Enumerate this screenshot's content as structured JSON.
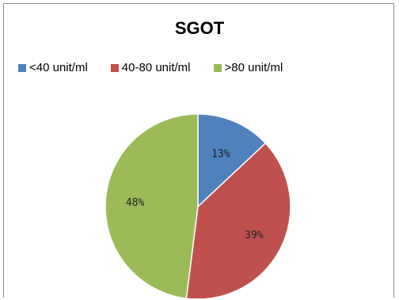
{
  "chart_data": {
    "type": "pie",
    "title": "SGOT",
    "legend_position": "top",
    "slices": [
      {
        "label": "<40 unit/ml",
        "value": 13,
        "value_label": "13%",
        "color": "#4f81bd"
      },
      {
        "label": "40-80 unit/ml",
        "value": 39,
        "value_label": "39%",
        "color": "#c0504d"
      },
      {
        "label": ">80 unit/ml",
        "value": 48,
        "value_label": "48%",
        "color": "#9bbb59"
      }
    ]
  }
}
